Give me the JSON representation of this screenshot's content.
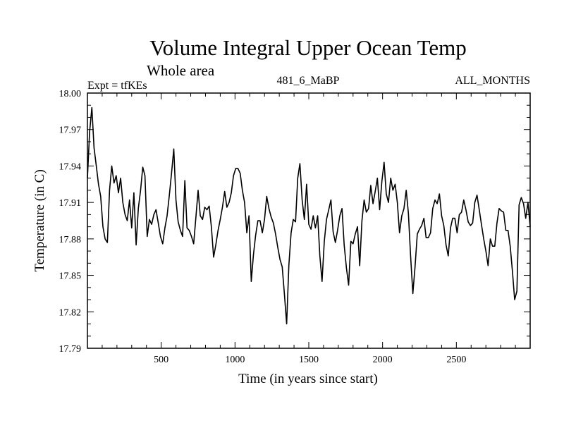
{
  "chart_data": {
    "type": "line",
    "title": "Volume Integral Upper Ocean Temp",
    "subtitle": "Whole area",
    "experiment": "Expt = tfKEs",
    "run_id": "481_6_MaBP",
    "period": "ALL_MONTHS",
    "xlabel": "Time (in years since start)",
    "ylabel": "Temperature (in C)",
    "xlim": [
      0,
      3000
    ],
    "ylim": [
      17.79,
      18.0
    ],
    "x_ticks": [
      500,
      1000,
      1500,
      2000,
      2500
    ],
    "x_tick_labels": [
      "500",
      "1000",
      "1500",
      "2000",
      "2500"
    ],
    "y_ticks": [
      17.79,
      17.82,
      17.85,
      17.88,
      17.91,
      17.94,
      17.97,
      18.0
    ],
    "y_tick_labels": [
      "17.79",
      "17.82",
      "17.85",
      "17.88",
      "17.91",
      "17.94",
      "17.97",
      "18.00"
    ],
    "grid": false,
    "series": [
      {
        "x": [
          0,
          15,
          30,
          45,
          60,
          75,
          90,
          105,
          120,
          135,
          150,
          165,
          180,
          195,
          210,
          225,
          240,
          255,
          270,
          285,
          300,
          315,
          330,
          345,
          360,
          375,
          390,
          405,
          420,
          435,
          450,
          465,
          480,
          495,
          510,
          525,
          540,
          555,
          570,
          585,
          600,
          615,
          630,
          645,
          660,
          675,
          690,
          705,
          720,
          735,
          750,
          765,
          780,
          795,
          810,
          825,
          840,
          855,
          870,
          885,
          900,
          915,
          930,
          945,
          960,
          975,
          990,
          1005,
          1020,
          1035,
          1050,
          1065,
          1080,
          1095,
          1110,
          1125,
          1140,
          1155,
          1170,
          1185,
          1200,
          1215,
          1230,
          1245,
          1260,
          1275,
          1290,
          1305,
          1320,
          1335,
          1350,
          1365,
          1380,
          1395,
          1410,
          1425,
          1440,
          1455,
          1470,
          1485,
          1500,
          1515,
          1530,
          1545,
          1560,
          1575,
          1590,
          1605,
          1620,
          1635,
          1650,
          1665,
          1680,
          1695,
          1710,
          1725,
          1740,
          1755,
          1770,
          1785,
          1800,
          1815,
          1830,
          1845,
          1860,
          1875,
          1890,
          1905,
          1920,
          1935,
          1950,
          1965,
          1980,
          1995,
          2010,
          2025,
          2040,
          2055,
          2070,
          2085,
          2100,
          2115,
          2130,
          2145,
          2160,
          2175,
          2190,
          2205,
          2220,
          2235,
          2250,
          2265,
          2280,
          2295,
          2310,
          2325,
          2340,
          2355,
          2370,
          2385,
          2400,
          2415,
          2430,
          2445,
          2460,
          2475,
          2490,
          2505,
          2520,
          2535,
          2550,
          2565,
          2580,
          2595,
          2610,
          2625,
          2640,
          2655,
          2670,
          2685,
          2700,
          2715,
          2730,
          2745,
          2760,
          2775,
          2790,
          2805,
          2820,
          2835,
          2850,
          2865,
          2880,
          2895,
          2910,
          2925,
          2940,
          2955,
          2970,
          2985,
          3000
        ],
        "values": [
          17.93,
          17.968,
          17.988,
          17.955,
          17.94,
          17.925,
          17.915,
          17.89,
          17.88,
          17.877,
          17.92,
          17.94,
          17.926,
          17.932,
          17.918,
          17.93,
          17.91,
          17.9,
          17.895,
          17.912,
          17.889,
          17.918,
          17.875,
          17.905,
          17.92,
          17.939,
          17.932,
          17.882,
          17.896,
          17.892,
          17.9,
          17.904,
          17.893,
          17.882,
          17.876,
          17.889,
          17.899,
          17.916,
          17.934,
          17.954,
          17.912,
          17.894,
          17.887,
          17.882,
          17.928,
          17.889,
          17.887,
          17.882,
          17.876,
          17.898,
          17.92,
          17.899,
          17.896,
          17.906,
          17.904,
          17.907,
          17.89,
          17.865,
          17.875,
          17.887,
          17.896,
          17.906,
          17.919,
          17.906,
          17.91,
          17.918,
          17.932,
          17.938,
          17.938,
          17.934,
          17.92,
          17.91,
          17.885,
          17.899,
          17.845,
          17.867,
          17.883,
          17.895,
          17.895,
          17.885,
          17.896,
          17.915,
          17.905,
          17.898,
          17.893,
          17.884,
          17.873,
          17.863,
          17.857,
          17.834,
          17.81,
          17.858,
          17.885,
          17.896,
          17.894,
          17.93,
          17.942,
          17.912,
          17.896,
          17.925,
          17.892,
          17.888,
          17.899,
          17.889,
          17.899,
          17.866,
          17.845,
          17.878,
          17.896,
          17.904,
          17.912,
          17.886,
          17.877,
          17.887,
          17.899,
          17.905,
          17.875,
          17.856,
          17.842,
          17.878,
          17.876,
          17.884,
          17.89,
          17.858,
          17.895,
          17.912,
          17.902,
          17.905,
          17.924,
          17.909,
          17.919,
          17.93,
          17.904,
          17.927,
          17.943,
          17.917,
          17.91,
          17.93,
          17.92,
          17.925,
          17.91,
          17.885,
          17.899,
          17.905,
          17.92,
          17.901,
          17.866,
          17.835,
          17.857,
          17.884,
          17.888,
          17.891,
          17.897,
          17.881,
          17.881,
          17.885,
          17.905,
          17.912,
          17.909,
          17.917,
          17.899,
          17.891,
          17.875,
          17.866,
          17.889,
          17.897,
          17.897,
          17.885,
          17.9,
          17.902,
          17.912,
          17.904,
          17.894,
          17.891,
          17.893,
          17.91,
          17.916,
          17.904,
          17.892,
          17.88,
          17.87,
          17.858,
          17.88,
          17.874,
          17.874,
          17.893,
          17.905,
          17.903,
          17.902,
          17.887,
          17.887,
          17.874,
          17.853,
          17.83,
          17.837,
          17.908,
          17.914,
          17.909,
          17.897,
          17.91,
          17.89
        ]
      }
    ]
  }
}
